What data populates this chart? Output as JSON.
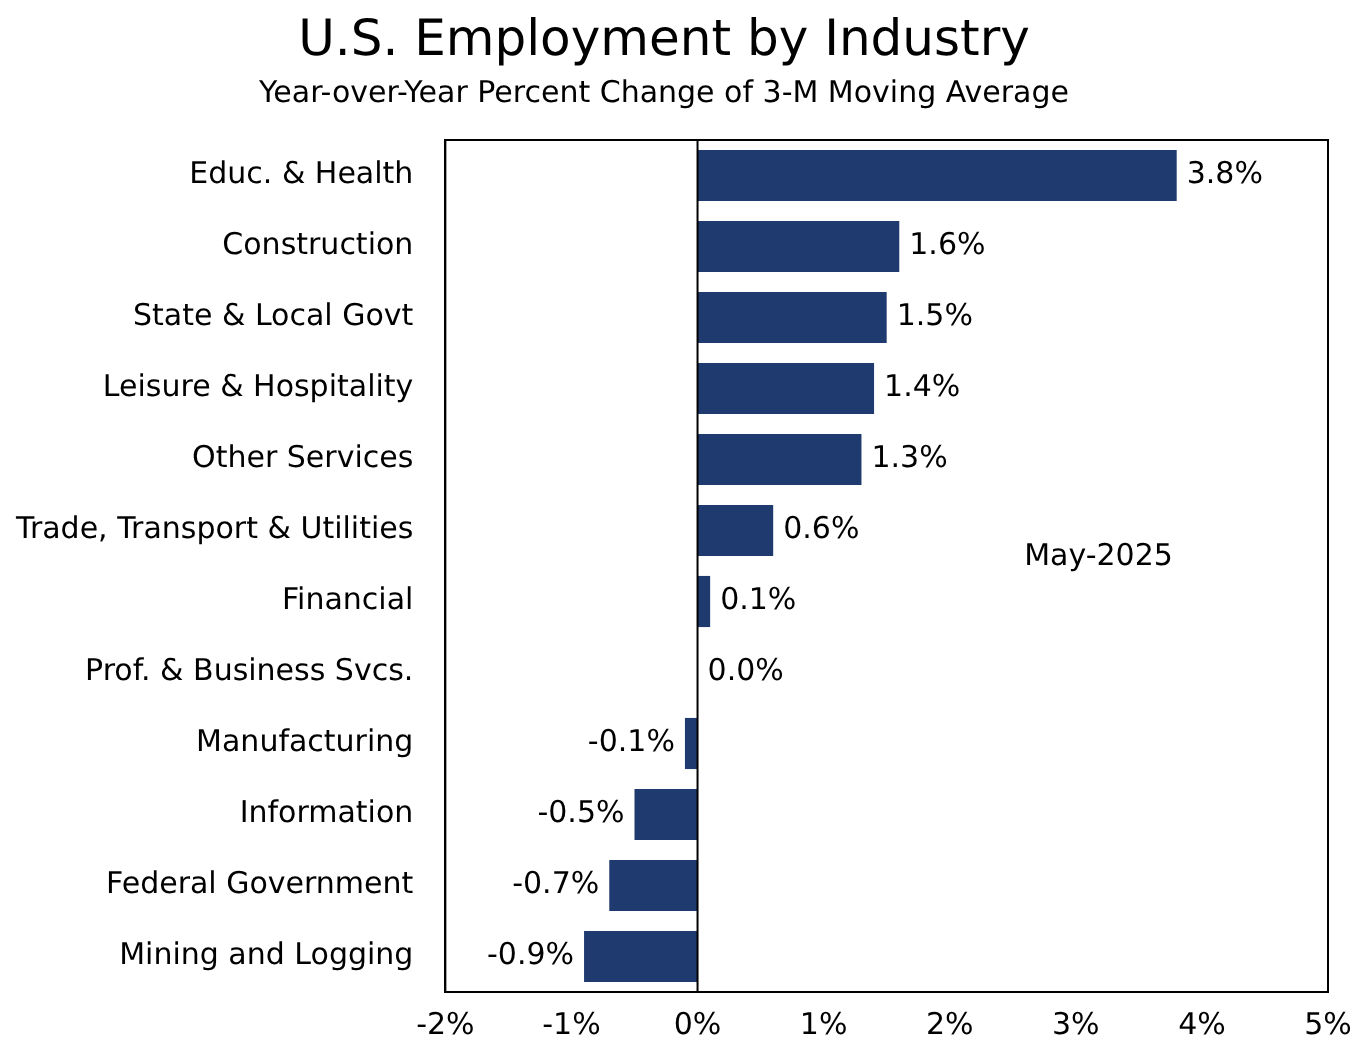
{
  "chart_data": {
    "type": "bar",
    "orientation": "horizontal",
    "title": "U.S. Employment by Industry",
    "subtitle": "Year-over-Year Percent Change of 3-M Moving Average",
    "categories": [
      "Educ. & Health",
      "Construction",
      "State & Local Govt",
      "Leisure & Hospitality",
      "Other Services",
      "Trade, Transport & Utilities",
      "Financial",
      "Prof. & Business Svcs.",
      "Manufacturing",
      "Information",
      "Federal Government",
      "Mining and Logging"
    ],
    "values": [
      3.8,
      1.6,
      1.5,
      1.4,
      1.3,
      0.6,
      0.1,
      0.0,
      -0.1,
      -0.5,
      -0.7,
      -0.9
    ],
    "value_labels": [
      "3.8%",
      "1.6%",
      "1.5%",
      "1.4%",
      "1.3%",
      "0.6%",
      "0.1%",
      "0.0%",
      "-0.1%",
      "-0.5%",
      "-0.7%",
      "-0.9%"
    ],
    "color": "#1f3a6e",
    "xlim": [
      -2,
      5
    ],
    "xticks": [
      {
        "value": -2,
        "label": "-2%"
      },
      {
        "value": -1,
        "label": "-1%"
      },
      {
        "value": 0,
        "label": "0%"
      },
      {
        "value": 1,
        "label": "1%"
      },
      {
        "value": 2,
        "label": "2%"
      },
      {
        "value": 3,
        "label": "3%"
      },
      {
        "value": 4,
        "label": "4%"
      },
      {
        "value": 5,
        "label": "5%"
      }
    ],
    "annotations": [
      "May-2025"
    ],
    "ref_lines": [
      {
        "axis": "x",
        "value": 0,
        "color": "#000000"
      }
    ],
    "grid": false,
    "legend": false
  }
}
